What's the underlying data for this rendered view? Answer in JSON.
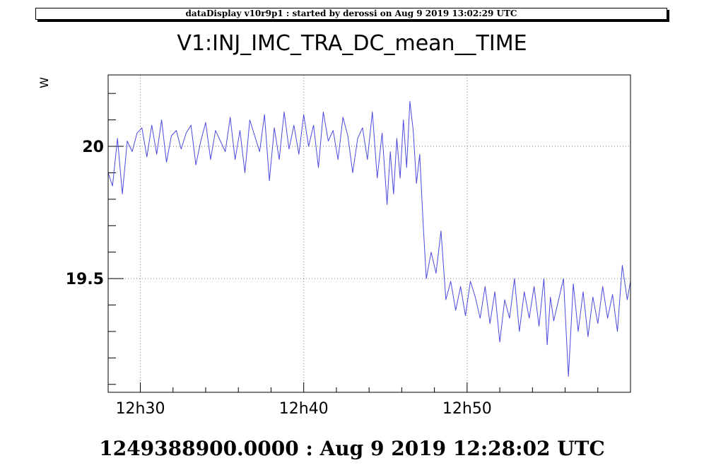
{
  "header": {
    "text": "dataDisplay v10r9p1 : started by derossi on Aug  9 2019 13:02:29 UTC"
  },
  "footer": {
    "text": "1249388900.0000 : Aug  9 2019 12:28:02 UTC"
  },
  "chart_data": {
    "type": "line",
    "title": "V1:INJ_IMC_TRA_DC_mean__TIME",
    "xlabel": "",
    "ylabel": "W",
    "x_unit": "minutes",
    "xlim": [
      28.03,
      60.0
    ],
    "ylim": [
      19.07,
      20.27
    ],
    "x_ticks": [
      {
        "value": 30,
        "label": "12h30"
      },
      {
        "value": 40,
        "label": "12h40"
      },
      {
        "value": 50,
        "label": "12h50"
      }
    ],
    "y_ticks": [
      {
        "value": 20.0,
        "label": "20"
      },
      {
        "value": 19.5,
        "label": "19.5"
      }
    ],
    "grid": true,
    "line_color": "#4a4ae0",
    "series": [
      {
        "x": [
          28.03,
          28.3,
          28.6,
          28.9,
          29.2,
          29.5,
          29.8,
          30.1,
          30.4,
          30.7,
          31.0,
          31.3,
          31.6,
          31.9,
          32.2,
          32.5,
          32.8,
          33.1,
          33.4,
          33.7,
          34.0,
          34.3,
          34.6,
          34.9,
          35.2,
          35.5,
          35.8,
          36.1,
          36.4,
          36.7,
          37.0,
          37.3,
          37.6,
          37.9,
          38.2,
          38.5,
          38.8,
          39.1,
          39.4,
          39.7,
          40.0,
          40.3,
          40.6,
          40.9,
          41.2,
          41.5,
          41.8,
          42.1,
          42.4,
          42.7,
          43.0,
          43.3,
          43.6,
          43.9,
          44.2,
          44.5,
          44.8,
          45.1,
          45.3,
          45.5,
          45.7,
          45.9,
          46.1,
          46.3,
          46.5,
          46.7,
          46.9,
          47.1,
          47.3,
          47.5,
          47.8,
          48.1,
          48.4,
          48.7,
          49.0,
          49.3,
          49.6,
          49.9,
          50.2,
          50.5,
          50.8,
          51.1,
          51.4,
          51.7,
          52.0,
          52.3,
          52.6,
          52.9,
          53.2,
          53.5,
          53.8,
          54.1,
          54.4,
          54.7,
          54.9,
          55.1,
          55.3,
          55.6,
          55.9,
          56.2,
          56.5,
          56.8,
          57.1,
          57.4,
          57.7,
          58.0,
          58.3,
          58.6,
          58.9,
          59.2,
          59.5,
          59.8,
          60.0
        ],
        "y": [
          19.9,
          19.85,
          20.03,
          19.82,
          20.02,
          19.98,
          20.05,
          20.07,
          19.96,
          20.08,
          19.97,
          20.1,
          19.94,
          20.04,
          20.06,
          19.99,
          20.05,
          20.08,
          19.93,
          20.02,
          20.09,
          19.95,
          20.06,
          20.02,
          19.98,
          20.11,
          19.95,
          20.06,
          19.9,
          20.1,
          20.04,
          19.98,
          20.12,
          19.87,
          20.07,
          19.95,
          20.13,
          19.99,
          20.08,
          19.97,
          20.12,
          20.0,
          20.08,
          19.92,
          20.13,
          20.02,
          20.06,
          19.95,
          20.11,
          20.04,
          19.9,
          20.03,
          20.07,
          19.95,
          20.13,
          19.88,
          20.05,
          19.78,
          19.98,
          19.82,
          20.03,
          19.88,
          20.1,
          19.92,
          20.17,
          20.06,
          19.86,
          19.97,
          19.72,
          19.5,
          19.6,
          19.52,
          19.68,
          19.42,
          19.49,
          19.38,
          19.47,
          19.36,
          19.49,
          19.43,
          19.35,
          19.47,
          19.33,
          19.45,
          19.26,
          19.42,
          19.35,
          19.5,
          19.3,
          19.45,
          19.35,
          19.47,
          19.32,
          19.5,
          19.25,
          19.43,
          19.34,
          19.42,
          19.5,
          19.13,
          19.48,
          19.3,
          19.45,
          19.28,
          19.43,
          19.33,
          19.47,
          19.35,
          19.44,
          19.3,
          19.55,
          19.42,
          19.49
        ]
      }
    ]
  }
}
